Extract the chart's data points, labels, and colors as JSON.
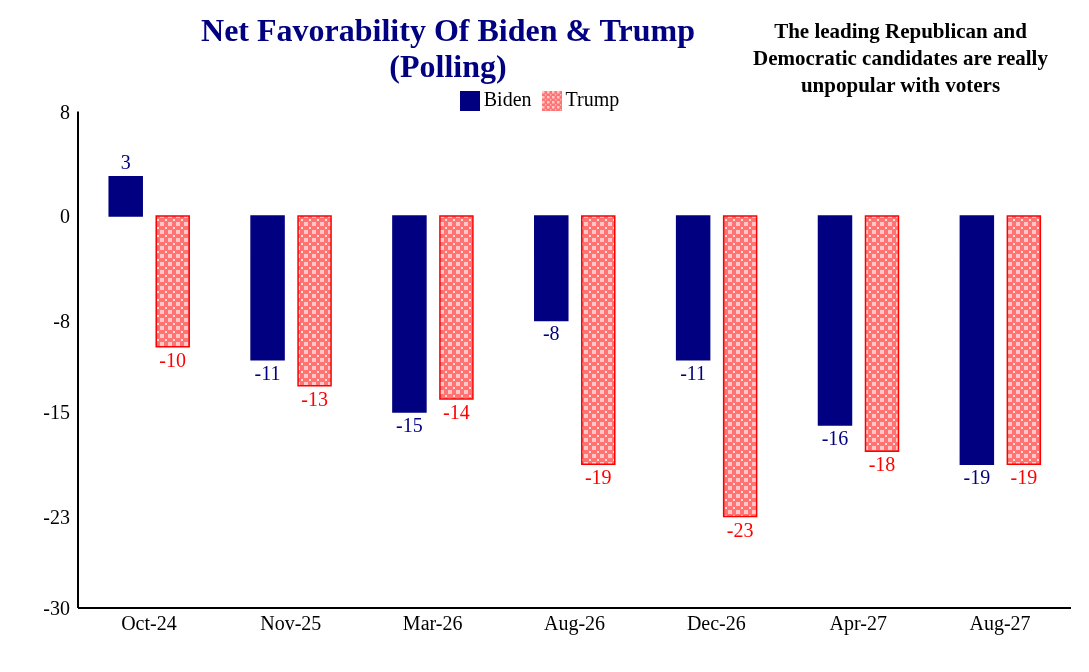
{
  "chart_data": {
    "type": "bar",
    "title": "Net Favorability Of Biden & Trump (Polling)",
    "annotations": [
      "The leading Republican and Democratic candidates are really unpopular with voters"
    ],
    "categories": [
      "Oct-24",
      "Nov-25",
      "Mar-26",
      "Aug-26",
      "Dec-26",
      "Apr-27",
      "Aug-27"
    ],
    "series": [
      {
        "name": "Biden",
        "color": "#000080",
        "values": [
          3,
          -11,
          -15,
          -8,
          -11,
          -16,
          -19
        ]
      },
      {
        "name": "Trump",
        "color": "#ff0000",
        "values": [
          -10,
          -13,
          -14,
          -19,
          -23,
          -18,
          -19
        ]
      }
    ],
    "ylim": [
      -30,
      8
    ],
    "yticks": [
      8,
      0,
      -8,
      -15,
      -23,
      -30
    ],
    "data_labels": true,
    "legend": "top",
    "grid": false
  }
}
